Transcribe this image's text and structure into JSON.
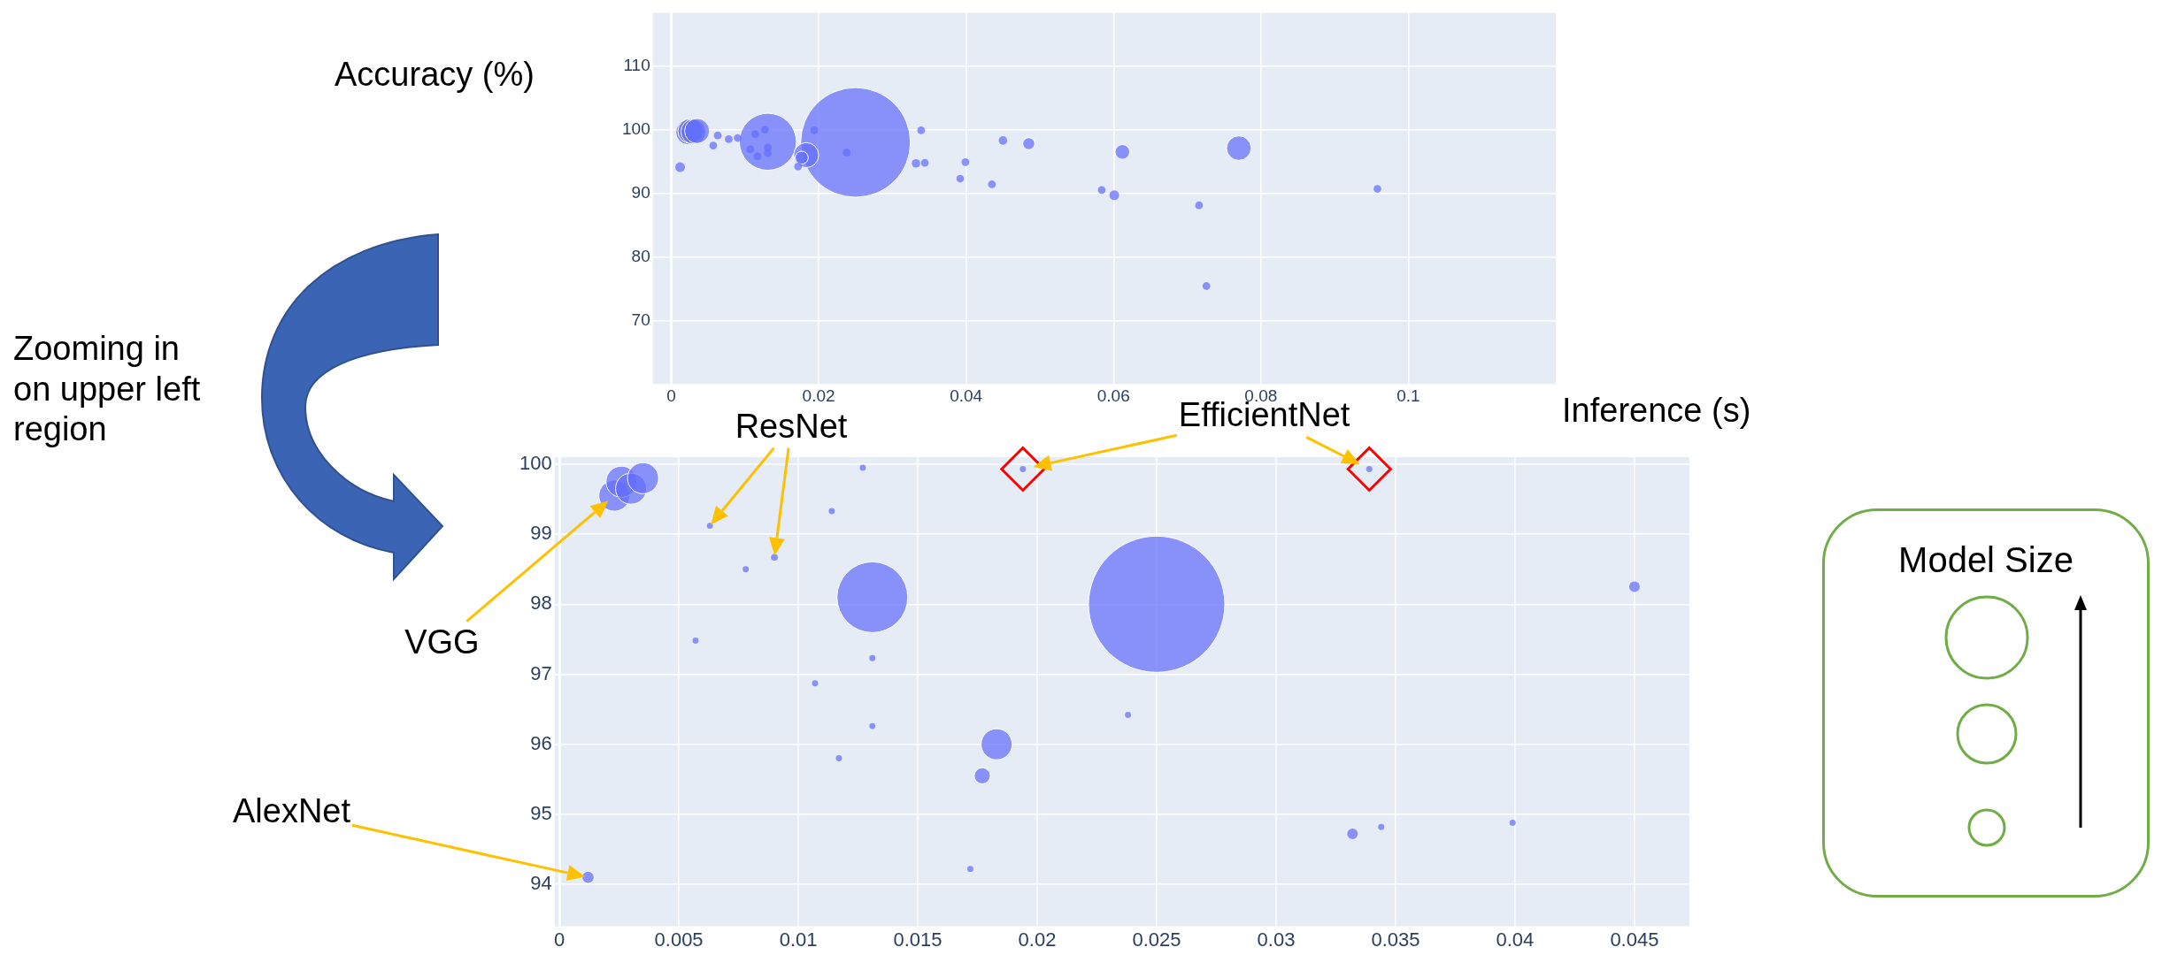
{
  "chart_data": [
    {
      "type": "bubble",
      "ylabel": "Accuracy (%)",
      "xlabel": "Inference (s)",
      "color": "#636efa",
      "grid": true,
      "xlim": [
        -0.0025,
        0.12
      ],
      "xticks": [
        0,
        0.02,
        0.04,
        0.06,
        0.08,
        0.1
      ],
      "ylim": [
        60,
        118.4
      ],
      "yticks": [
        70,
        80,
        90,
        100,
        110
      ],
      "x": [
        0.025,
        0.0131,
        0.0023,
        0.0026,
        0.003,
        0.0035,
        0.0183,
        0.0177,
        0.0012,
        0.0063,
        0.009,
        0.0107,
        0.0117,
        0.0131,
        0.0131,
        0.0057,
        0.0078,
        0.0194,
        0.0127,
        0.0339,
        0.045,
        0.0332,
        0.0344,
        0.0399,
        0.0114,
        0.0238,
        0.0172,
        0.0485,
        0.0612,
        0.077,
        0.0601,
        0.0392,
        0.0435,
        0.0584,
        0.0716,
        0.0726,
        0.0958
      ],
      "values": [
        98.0,
        98.1,
        99.6,
        99.8,
        99.7,
        99.8,
        96.0,
        95.6,
        94.1,
        99.1,
        98.7,
        96.9,
        95.8,
        97.2,
        96.3,
        97.5,
        98.5,
        99.9,
        100.0,
        99.9,
        98.3,
        94.7,
        94.8,
        94.9,
        99.3,
        96.4,
        94.2,
        97.8,
        96.5,
        97.1,
        89.7,
        92.3,
        91.4,
        90.5,
        88.1,
        75.4,
        90.7
      ],
      "sizes": [
        1,
        0.27,
        0.052,
        0.052,
        0.052,
        0.052,
        0.052,
        0.014,
        0.008,
        0.005,
        0.005,
        0.005,
        0.005,
        0.005,
        0.005,
        0.005,
        0.005,
        0.005,
        0.005,
        0.005,
        0.006,
        0.006,
        0.005,
        0.005,
        0.005,
        0.005,
        0.005,
        0.012,
        0.018,
        0.05,
        0.008,
        0.005,
        0.005,
        0.005,
        0.005,
        0.005,
        0.005
      ]
    },
    {
      "type": "bubble",
      "legend_title": "Model Size",
      "color": "#636efa",
      "grid": true,
      "xlim": [
        -0.0002,
        0.0473
      ],
      "xticks": [
        0,
        0.005,
        0.01,
        0.015,
        0.02,
        0.025,
        0.03,
        0.035,
        0.04,
        0.045
      ],
      "ylim": [
        93.4,
        100.1
      ],
      "yticks": [
        94,
        95,
        96,
        97,
        98,
        99,
        100
      ],
      "x": [
        0.025,
        0.0131,
        0.0023,
        0.0026,
        0.003,
        0.0035,
        0.0183,
        0.0177,
        0.0012,
        0.0063,
        0.009,
        0.0107,
        0.0117,
        0.0131,
        0.0131,
        0.0057,
        0.0078,
        0.0194,
        0.0127,
        0.0339,
        0.045,
        0.0332,
        0.0344,
        0.0399,
        0.0114,
        0.0238,
        0.0172
      ],
      "values": [
        98.0,
        98.1,
        99.55,
        99.75,
        99.65,
        99.8,
        96.0,
        95.55,
        94.1,
        99.12,
        98.67,
        96.87,
        95.8,
        97.23,
        96.26,
        97.48,
        98.5,
        99.93,
        99.95,
        99.93,
        98.25,
        94.72,
        94.82,
        94.88,
        99.33,
        96.42,
        94.22
      ],
      "sizes": [
        1,
        0.27,
        0.052,
        0.052,
        0.052,
        0.052,
        0.052,
        0.014,
        0.008,
        0.002,
        0.0025,
        0.002,
        0.002,
        0.002,
        0.002,
        0.002,
        0.002,
        0.002,
        0.002,
        0.002,
        0.006,
        0.006,
        0.002,
        0.002,
        0.002,
        0.002,
        0.002
      ],
      "annotations": [
        "Zooming in on upper left region",
        {
          "text": "ResNet",
          "x": 0.0063,
          "y": 99.12
        },
        "EfficientNet",
        "VGG",
        "AlexNet"
      ]
    }
  ]
}
